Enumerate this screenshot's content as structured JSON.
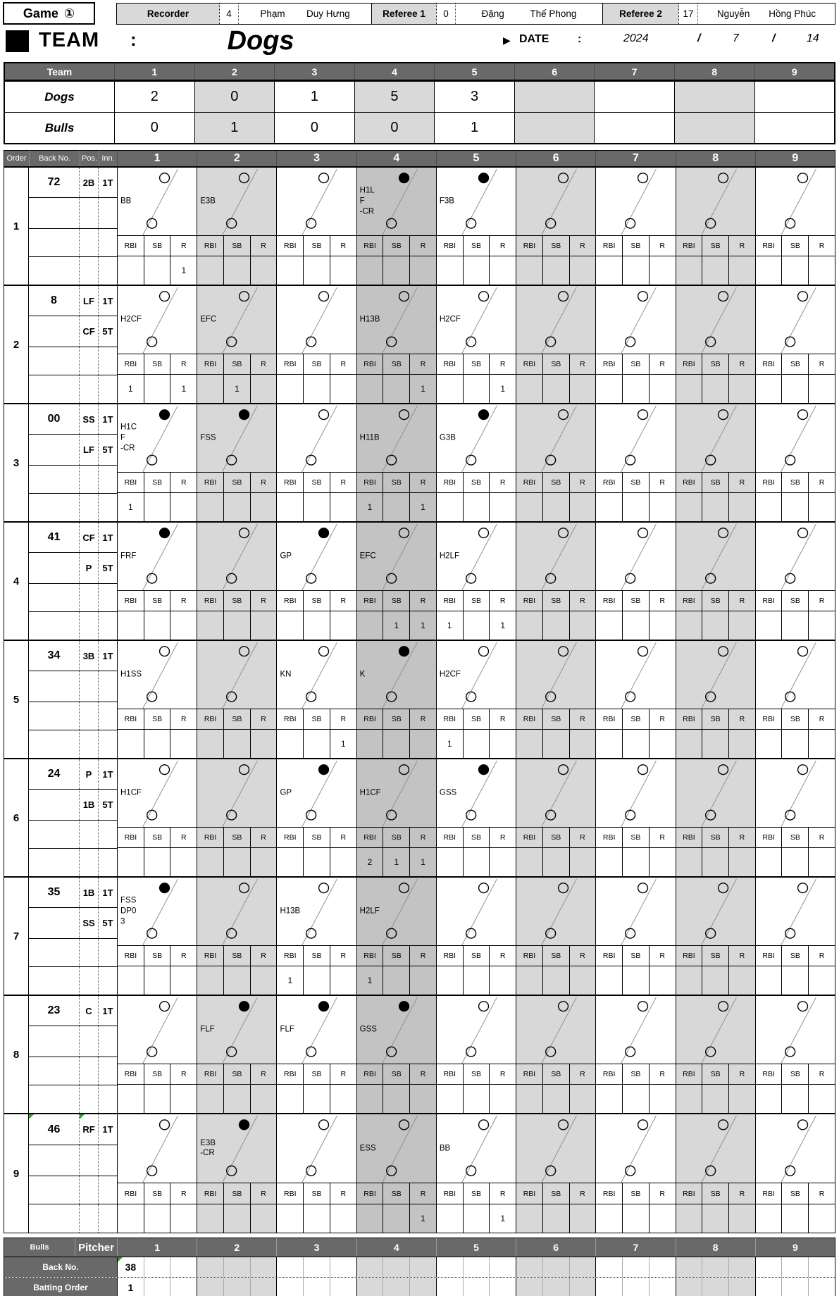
{
  "header": {
    "game_label": "Game",
    "game_number": "①",
    "officials": [
      {
        "role": "Recorder",
        "number": "4",
        "name": [
          "Phạm",
          "Duy Hưng"
        ]
      },
      {
        "role": "Referee 1",
        "number": "0",
        "name": [
          "Đặng",
          "Thế Phong"
        ]
      },
      {
        "role": "Referee 2",
        "number": "17",
        "name": [
          "Nguyễn",
          "Hồng Phúc"
        ]
      }
    ]
  },
  "team_bar": {
    "team_label": "TEAM",
    "team_colon": ":",
    "team_name": "Dogs",
    "date_marker": "▶",
    "date_label": "DATE",
    "date_colon": ":",
    "year": "2024",
    "slash1": "/",
    "month": "7",
    "slash2": "/",
    "day": "14"
  },
  "score_table": {
    "corner_label": "Team",
    "innings": [
      "1",
      "2",
      "3",
      "4",
      "5",
      "6",
      "7",
      "8",
      "9"
    ],
    "rows": [
      {
        "team": "Dogs",
        "scores": [
          "2",
          "0",
          "1",
          "5",
          "3",
          "",
          "",
          "",
          ""
        ]
      },
      {
        "team": "Bulls",
        "scores": [
          "0",
          "1",
          "0",
          "0",
          "1",
          "",
          "",
          "",
          ""
        ]
      }
    ]
  },
  "grid": {
    "headers": {
      "order": "Order",
      "back_no": "Back No.",
      "pos": "Pos.",
      "inn": "Inn.",
      "innings": [
        "1",
        "2",
        "3",
        "4",
        "5",
        "6",
        "7",
        "8",
        "9"
      ]
    },
    "stat_labels": [
      "RBI",
      "SB",
      "R"
    ],
    "batters": [
      {
        "order": "1",
        "back_no": "72",
        "positions": [
          {
            "pos": "2B",
            "inn": "1T"
          },
          {
            "pos": "",
            "inn": ""
          }
        ],
        "comment_marker": false,
        "cells": [
          {
            "lines": [
              "BB"
            ],
            "filled": false
          },
          {
            "lines": [
              "E3B"
            ],
            "filled": false
          },
          {
            "lines": [],
            "filled": false
          },
          {
            "lines": [
              "H1L",
              "F",
              "-CR"
            ],
            "filled": true
          },
          {
            "lines": [
              "F3B"
            ],
            "filled": true
          },
          {
            "lines": [],
            "filled": false
          },
          {
            "lines": [],
            "filled": false
          },
          {
            "lines": [],
            "filled": false
          },
          {
            "lines": [],
            "filled": false
          }
        ],
        "stats": [
          [
            "",
            "",
            "1"
          ],
          [
            "",
            "",
            ""
          ],
          [
            "",
            "",
            ""
          ],
          [
            "",
            "",
            ""
          ],
          [
            "",
            "",
            ""
          ],
          [
            "",
            "",
            ""
          ],
          [
            "",
            "",
            ""
          ],
          [
            "",
            "",
            ""
          ],
          [
            "",
            "",
            ""
          ]
        ]
      },
      {
        "order": "2",
        "back_no": "8",
        "positions": [
          {
            "pos": "LF",
            "inn": "1T"
          },
          {
            "pos": "CF",
            "inn": "5T"
          }
        ],
        "comment_marker": false,
        "cells": [
          {
            "lines": [
              "H2CF"
            ],
            "filled": false
          },
          {
            "lines": [
              "EFC"
            ],
            "filled": false
          },
          {
            "lines": [],
            "filled": false
          },
          {
            "lines": [
              "H13B"
            ],
            "filled": false
          },
          {
            "lines": [
              "H2CF"
            ],
            "filled": false
          },
          {
            "lines": [],
            "filled": false
          },
          {
            "lines": [],
            "filled": false
          },
          {
            "lines": [],
            "filled": false
          },
          {
            "lines": [],
            "filled": false
          }
        ],
        "stats": [
          [
            "1",
            "",
            "1"
          ],
          [
            "",
            "1",
            ""
          ],
          [
            "",
            "",
            ""
          ],
          [
            "",
            "",
            "1"
          ],
          [
            "",
            "",
            "1"
          ],
          [
            "",
            "",
            ""
          ],
          [
            "",
            "",
            ""
          ],
          [
            "",
            "",
            ""
          ],
          [
            "",
            "",
            ""
          ]
        ]
      },
      {
        "order": "3",
        "back_no": "00",
        "positions": [
          {
            "pos": "SS",
            "inn": "1T"
          },
          {
            "pos": "LF",
            "inn": "5T"
          }
        ],
        "comment_marker": false,
        "cells": [
          {
            "lines": [
              "H1C",
              "F",
              "-CR"
            ],
            "filled": true
          },
          {
            "lines": [
              "FSS"
            ],
            "filled": true
          },
          {
            "lines": [],
            "filled": false
          },
          {
            "lines": [
              "H11B"
            ],
            "filled": false
          },
          {
            "lines": [
              "G3B"
            ],
            "filled": true
          },
          {
            "lines": [],
            "filled": false
          },
          {
            "lines": [],
            "filled": false
          },
          {
            "lines": [],
            "filled": false
          },
          {
            "lines": [],
            "filled": false
          }
        ],
        "stats": [
          [
            "1",
            "",
            ""
          ],
          [
            "",
            "",
            ""
          ],
          [
            "",
            "",
            ""
          ],
          [
            "1",
            "",
            "1"
          ],
          [
            "",
            "",
            ""
          ],
          [
            "",
            "",
            ""
          ],
          [
            "",
            "",
            ""
          ],
          [
            "",
            "",
            ""
          ],
          [
            "",
            "",
            ""
          ]
        ]
      },
      {
        "order": "4",
        "back_no": "41",
        "positions": [
          {
            "pos": "CF",
            "inn": "1T"
          },
          {
            "pos": "P",
            "inn": "5T"
          }
        ],
        "comment_marker": false,
        "cells": [
          {
            "lines": [
              "FRF"
            ],
            "filled": true
          },
          {
            "lines": [],
            "filled": false
          },
          {
            "lines": [
              "GP"
            ],
            "filled": true
          },
          {
            "lines": [
              "EFC"
            ],
            "filled": false
          },
          {
            "lines": [
              "H2LF"
            ],
            "filled": false
          },
          {
            "lines": [],
            "filled": false
          },
          {
            "lines": [],
            "filled": false
          },
          {
            "lines": [],
            "filled": false
          },
          {
            "lines": [],
            "filled": false
          }
        ],
        "stats": [
          [
            "",
            "",
            ""
          ],
          [
            "",
            "",
            ""
          ],
          [
            "",
            "",
            ""
          ],
          [
            "",
            "1",
            "1"
          ],
          [
            "1",
            "",
            "1"
          ],
          [
            "",
            "",
            ""
          ],
          [
            "",
            "",
            ""
          ],
          [
            "",
            "",
            ""
          ],
          [
            "",
            "",
            ""
          ]
        ]
      },
      {
        "order": "5",
        "back_no": "34",
        "positions": [
          {
            "pos": "3B",
            "inn": "1T"
          },
          {
            "pos": "",
            "inn": ""
          }
        ],
        "comment_marker": false,
        "cells": [
          {
            "lines": [
              "H1SS"
            ],
            "filled": false
          },
          {
            "lines": [],
            "filled": false
          },
          {
            "lines": [
              "KN"
            ],
            "filled": false
          },
          {
            "lines": [
              "K"
            ],
            "filled": true
          },
          {
            "lines": [
              "H2CF"
            ],
            "filled": false
          },
          {
            "lines": [],
            "filled": false
          },
          {
            "lines": [],
            "filled": false
          },
          {
            "lines": [],
            "filled": false
          },
          {
            "lines": [],
            "filled": false
          }
        ],
        "stats": [
          [
            "",
            "",
            ""
          ],
          [
            "",
            "",
            ""
          ],
          [
            "",
            "",
            "1"
          ],
          [
            "",
            "",
            ""
          ],
          [
            "1",
            "",
            ""
          ],
          [
            "",
            "",
            ""
          ],
          [
            "",
            "",
            ""
          ],
          [
            "",
            "",
            ""
          ],
          [
            "",
            "",
            ""
          ]
        ]
      },
      {
        "order": "6",
        "back_no": "24",
        "positions": [
          {
            "pos": "P",
            "inn": "1T"
          },
          {
            "pos": "1B",
            "inn": "5T"
          }
        ],
        "comment_marker": false,
        "cells": [
          {
            "lines": [
              "H1CF"
            ],
            "filled": false
          },
          {
            "lines": [],
            "filled": false
          },
          {
            "lines": [
              "GP"
            ],
            "filled": true
          },
          {
            "lines": [
              "H1CF"
            ],
            "filled": false
          },
          {
            "lines": [
              "GSS"
            ],
            "filled": true
          },
          {
            "lines": [],
            "filled": false
          },
          {
            "lines": [],
            "filled": false
          },
          {
            "lines": [],
            "filled": false
          },
          {
            "lines": [],
            "filled": false
          }
        ],
        "stats": [
          [
            "",
            "",
            ""
          ],
          [
            "",
            "",
            ""
          ],
          [
            "",
            "",
            ""
          ],
          [
            "2",
            "1",
            "1"
          ],
          [
            "",
            "",
            ""
          ],
          [
            "",
            "",
            ""
          ],
          [
            "",
            "",
            ""
          ],
          [
            "",
            "",
            ""
          ],
          [
            "",
            "",
            ""
          ]
        ]
      },
      {
        "order": "7",
        "back_no": "35",
        "positions": [
          {
            "pos": "1B",
            "inn": "1T"
          },
          {
            "pos": "SS",
            "inn": "5T"
          }
        ],
        "comment_marker": false,
        "cells": [
          {
            "lines": [
              "FSS",
              "DP0",
              "3"
            ],
            "filled": true
          },
          {
            "lines": [],
            "filled": false
          },
          {
            "lines": [
              "H13B"
            ],
            "filled": false
          },
          {
            "lines": [
              "H2LF"
            ],
            "filled": false
          },
          {
            "lines": [],
            "filled": false
          },
          {
            "lines": [],
            "filled": false
          },
          {
            "lines": [],
            "filled": false
          },
          {
            "lines": [],
            "filled": false
          },
          {
            "lines": [],
            "filled": false
          }
        ],
        "stats": [
          [
            "",
            "",
            ""
          ],
          [
            "",
            "",
            ""
          ],
          [
            "1",
            "",
            ""
          ],
          [
            "1",
            "",
            ""
          ],
          [
            "",
            "",
            ""
          ],
          [
            "",
            "",
            ""
          ],
          [
            "",
            "",
            ""
          ],
          [
            "",
            "",
            ""
          ],
          [
            "",
            "",
            ""
          ]
        ]
      },
      {
        "order": "8",
        "back_no": "23",
        "positions": [
          {
            "pos": "C",
            "inn": "1T"
          },
          {
            "pos": "",
            "inn": ""
          }
        ],
        "comment_marker": false,
        "cells": [
          {
            "lines": [],
            "filled": false
          },
          {
            "lines": [
              "FLF"
            ],
            "filled": true
          },
          {
            "lines": [
              "FLF"
            ],
            "filled": true
          },
          {
            "lines": [
              "GSS"
            ],
            "filled": true
          },
          {
            "lines": [],
            "filled": false
          },
          {
            "lines": [],
            "filled": false
          },
          {
            "lines": [],
            "filled": false
          },
          {
            "lines": [],
            "filled": false
          },
          {
            "lines": [],
            "filled": false
          }
        ],
        "stats": [
          [
            "",
            "",
            ""
          ],
          [
            "",
            "",
            ""
          ],
          [
            "",
            "",
            ""
          ],
          [
            "",
            "",
            ""
          ],
          [
            "",
            "",
            ""
          ],
          [
            "",
            "",
            ""
          ],
          [
            "",
            "",
            ""
          ],
          [
            "",
            "",
            ""
          ],
          [
            "",
            "",
            ""
          ]
        ]
      },
      {
        "order": "9",
        "back_no": "46",
        "positions": [
          {
            "pos": "RF",
            "inn": "1T"
          },
          {
            "pos": "",
            "inn": ""
          }
        ],
        "comment_marker": true,
        "cells": [
          {
            "lines": [],
            "filled": false
          },
          {
            "lines": [
              "E3B",
              "-CR"
            ],
            "filled": true
          },
          {
            "lines": [],
            "filled": false
          },
          {
            "lines": [
              "ESS"
            ],
            "filled": false
          },
          {
            "lines": [
              "BB"
            ],
            "filled": false
          },
          {
            "lines": [],
            "filled": false
          },
          {
            "lines": [],
            "filled": false
          },
          {
            "lines": [],
            "filled": false
          },
          {
            "lines": [],
            "filled": false
          }
        ],
        "stats": [
          [
            "",
            "",
            ""
          ],
          [
            "",
            "",
            ""
          ],
          [
            "",
            "",
            ""
          ],
          [
            "",
            "",
            "1"
          ],
          [
            "",
            "",
            "1"
          ],
          [
            "",
            "",
            ""
          ],
          [
            "",
            "",
            ""
          ],
          [
            "",
            "",
            ""
          ],
          [
            "",
            "",
            ""
          ]
        ]
      }
    ]
  },
  "pitcher_table": {
    "team": "Bulls",
    "title": "Pitcher",
    "innings": [
      "1",
      "2",
      "3",
      "4",
      "5",
      "6",
      "7",
      "8",
      "9"
    ],
    "rows": [
      {
        "label": "Back No.",
        "values": [
          "38",
          "",
          "",
          "",
          "",
          "",
          "",
          "",
          ""
        ],
        "comment_marker": true
      },
      {
        "label": "Batting Order",
        "values": [
          "1",
          "",
          "",
          "",
          "",
          "",
          "",
          "",
          ""
        ],
        "comment_marker": false
      }
    ]
  },
  "colors": {
    "header_gray": "#696969",
    "light_column": "#d8d8d8",
    "dark_column": "#c3c3c3",
    "label_gray": "#d9d9d9",
    "comment_marker_green": "#2fa12f"
  }
}
